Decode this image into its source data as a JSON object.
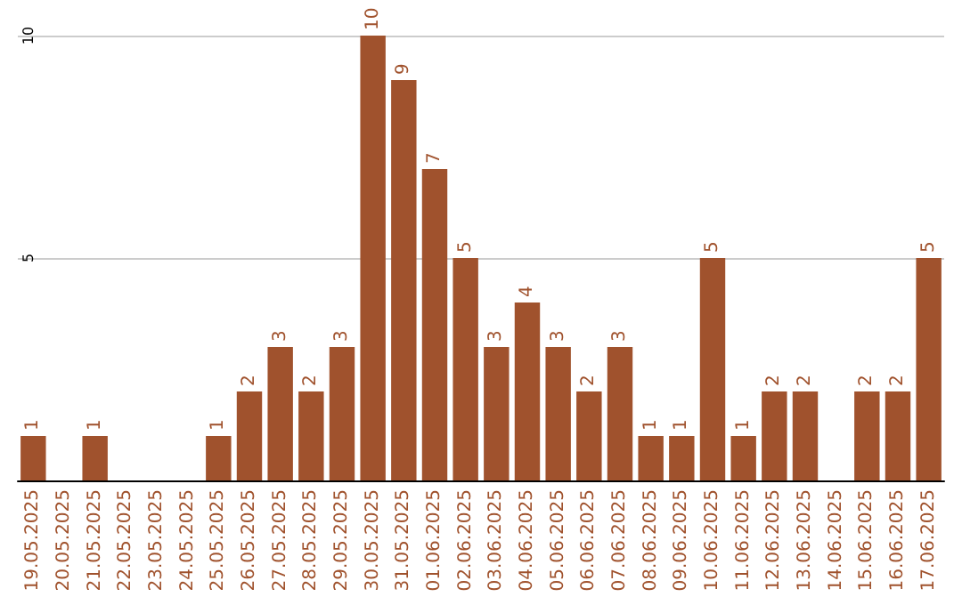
{
  "chart_data": {
    "type": "bar",
    "categories": [
      "19.05.2025",
      "20.05.2025",
      "21.05.2025",
      "22.05.2025",
      "23.05.2025",
      "24.05.2025",
      "25.05.2025",
      "26.05.2025",
      "27.05.2025",
      "28.05.2025",
      "29.05.2025",
      "30.05.2025",
      "31.05.2025",
      "01.06.2025",
      "02.06.2025",
      "03.06.2025",
      "04.06.2025",
      "05.06.2025",
      "06.06.2025",
      "07.06.2025",
      "08.06.2025",
      "09.06.2025",
      "10.06.2025",
      "11.06.2025",
      "12.06.2025",
      "13.06.2025",
      "14.06.2025",
      "15.06.2025",
      "16.06.2025",
      "17.06.2025"
    ],
    "values": [
      1,
      0,
      1,
      0,
      0,
      0,
      1,
      2,
      3,
      2,
      3,
      10,
      9,
      7,
      5,
      3,
      4,
      3,
      2,
      3,
      1,
      1,
      5,
      1,
      2,
      2,
      0,
      2,
      2,
      5
    ],
    "value_labels": [
      "1",
      null,
      "1",
      null,
      null,
      null,
      "1",
      "2",
      "3",
      "2",
      "3",
      "10",
      "9",
      "7",
      "5",
      "3",
      "4",
      "3",
      "2",
      "3",
      "1",
      "1",
      "5",
      "1",
      "2",
      "2",
      null,
      "2",
      "2",
      "5"
    ],
    "color": "#a0522d",
    "ylim": [
      0,
      10
    ],
    "yticks": [
      5,
      10
    ],
    "grid": "y"
  }
}
